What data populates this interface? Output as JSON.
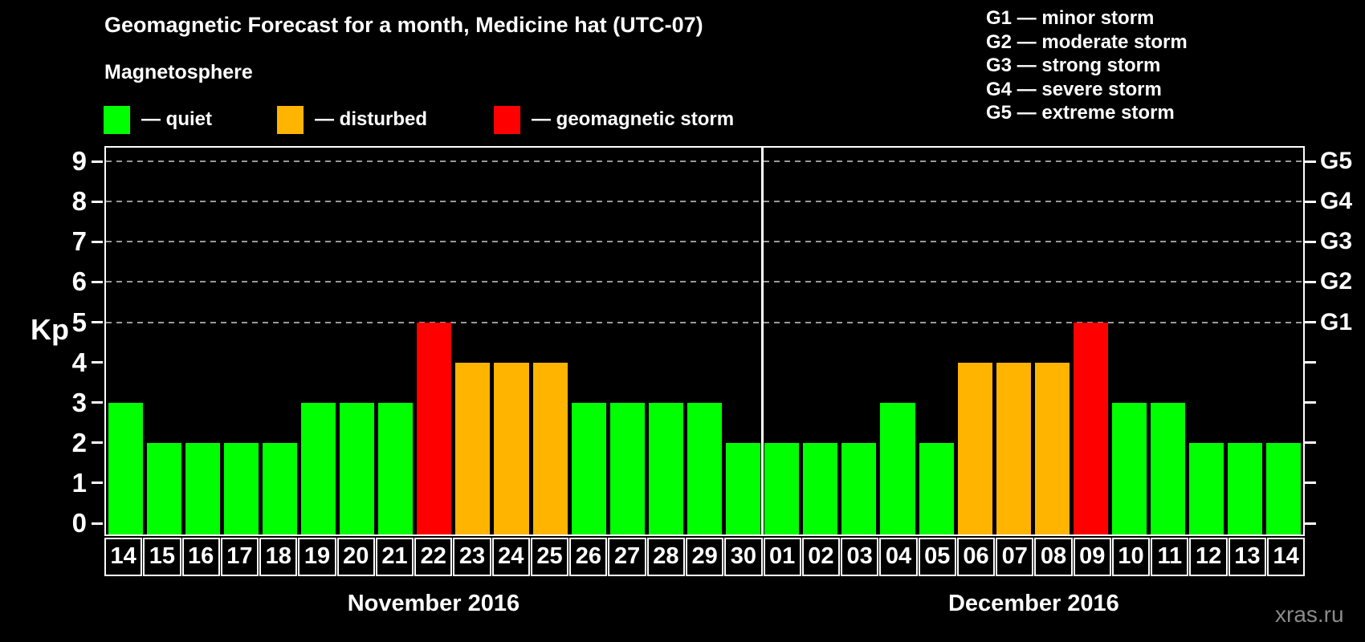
{
  "title": "Geomagnetic Forecast for a month, Medicine hat (UTC-07)",
  "subtitle": "Magnetosphere",
  "legend": {
    "items": [
      {
        "status": "quiet",
        "label": "— quiet"
      },
      {
        "status": "disturbed",
        "label": "— disturbed"
      },
      {
        "status": "storm",
        "label": "— geomagnetic storm"
      }
    ]
  },
  "storm_scale_legend": [
    "G1 — minor storm",
    "G2 — moderate storm",
    "G3 — strong storm",
    "G4 — severe storm",
    "G5 — extreme storm"
  ],
  "watermark": "xras.ru",
  "chart_data": {
    "type": "bar",
    "title": "Geomagnetic Forecast for a month, Medicine hat (UTC-07)",
    "ylabel": "Kp",
    "ylim": [
      0,
      9
    ],
    "yticks": [
      0,
      1,
      2,
      3,
      4,
      5,
      6,
      7,
      8,
      9
    ],
    "grid_levels": [
      5,
      6,
      7,
      8,
      9
    ],
    "right_axis": [
      {
        "kp": 5,
        "label": "G1"
      },
      {
        "kp": 6,
        "label": "G2"
      },
      {
        "kp": 7,
        "label": "G3"
      },
      {
        "kp": 8,
        "label": "G4"
      },
      {
        "kp": 9,
        "label": "G5"
      }
    ],
    "status_colors": {
      "quiet": "#00ff00",
      "disturbed": "#ffb400",
      "storm": "#ff0000"
    },
    "months": [
      {
        "label": "November 2016",
        "days": [
          "14",
          "15",
          "16",
          "17",
          "18",
          "19",
          "20",
          "21",
          "22",
          "23",
          "24",
          "25",
          "26",
          "27",
          "28",
          "29",
          "30"
        ],
        "values": [
          3,
          2,
          2,
          2,
          2,
          3,
          3,
          3,
          5,
          4,
          4,
          4,
          3,
          3,
          3,
          3,
          2
        ],
        "status": [
          "quiet",
          "quiet",
          "quiet",
          "quiet",
          "quiet",
          "quiet",
          "quiet",
          "quiet",
          "storm",
          "disturbed",
          "disturbed",
          "disturbed",
          "quiet",
          "quiet",
          "quiet",
          "quiet",
          "quiet"
        ]
      },
      {
        "label": "December 2016",
        "days": [
          "01",
          "02",
          "03",
          "04",
          "05",
          "06",
          "07",
          "08",
          "09",
          "10",
          "11",
          "12",
          "13",
          "14"
        ],
        "values": [
          2,
          2,
          2,
          3,
          2,
          4,
          4,
          4,
          5,
          3,
          3,
          2,
          2,
          2
        ],
        "status": [
          "quiet",
          "quiet",
          "quiet",
          "quiet",
          "quiet",
          "disturbed",
          "disturbed",
          "disturbed",
          "storm",
          "quiet",
          "quiet",
          "quiet",
          "quiet",
          "quiet"
        ]
      }
    ]
  }
}
